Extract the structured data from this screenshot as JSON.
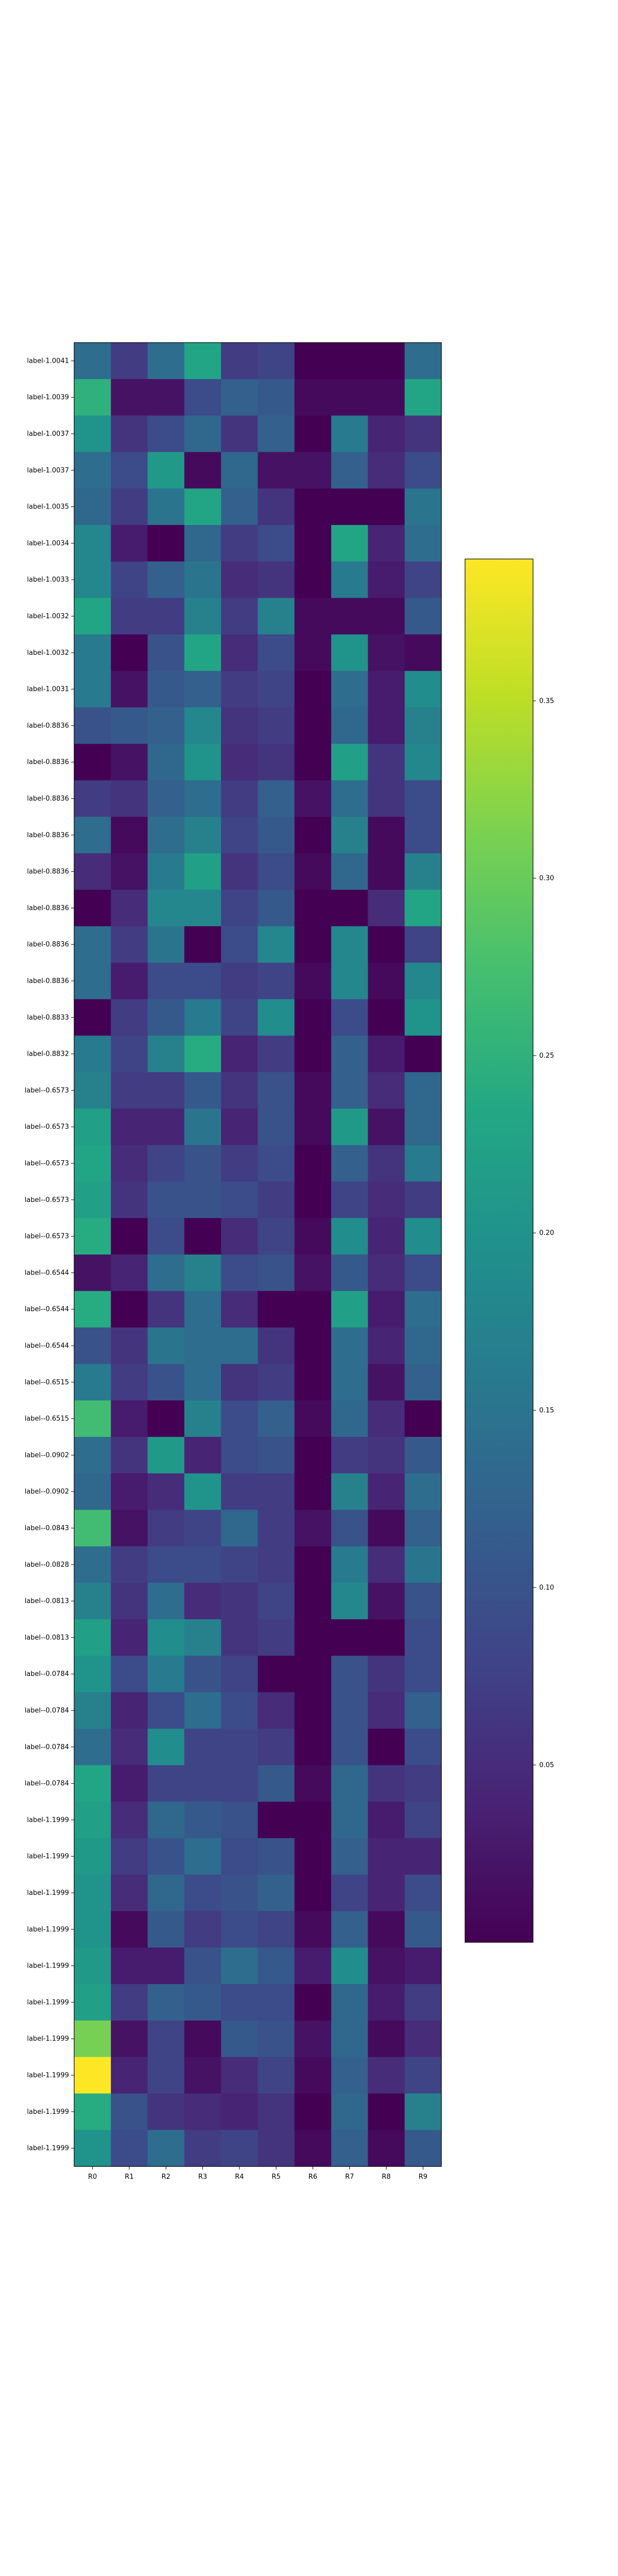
{
  "chart_data": {
    "type": "heatmap",
    "title": "",
    "xlabel": "",
    "ylabel": "",
    "colormap": "viridis",
    "colorbar": {
      "vmin": 0.0,
      "vmax": 0.39,
      "ticks": [
        0.05,
        0.1,
        0.15,
        0.2,
        0.25,
        0.3,
        0.35
      ],
      "tick_labels": [
        "0.05",
        "0.10",
        "0.15",
        "0.20",
        "0.25",
        "0.30",
        "0.35"
      ]
    },
    "columns": [
      "R0",
      "R1",
      "R2",
      "R3",
      "R4",
      "R5",
      "R6",
      "R7",
      "R8",
      "R9"
    ],
    "rows": [
      "label-1.0041",
      "label-1.0039",
      "label-1.0037",
      "label-1.0037",
      "label-1.0035",
      "label-1.0034",
      "label-1.0033",
      "label-1.0032",
      "label-1.0032",
      "label-1.0031",
      "label-0.8836",
      "label-0.8836",
      "label-0.8836",
      "label-0.8836",
      "label-0.8836",
      "label-0.8836",
      "label-0.8836",
      "label-0.8836",
      "label-0.8833",
      "label-0.8832",
      "label--0.6573",
      "label--0.6573",
      "label--0.6573",
      "label--0.6573",
      "label--0.6573",
      "label--0.6544",
      "label--0.6544",
      "label--0.6544",
      "label--0.6515",
      "label--0.6515",
      "label--0.0902",
      "label--0.0902",
      "label--0.0843",
      "label--0.0828",
      "label--0.0813",
      "label--0.0813",
      "label--0.0784",
      "label--0.0784",
      "label--0.0784",
      "label--0.0784",
      "label-1.1999",
      "label-1.1999",
      "label-1.1999",
      "label-1.1999",
      "label-1.1999",
      "label-1.1999",
      "label-1.1999",
      "label-1.1999",
      "label-1.1999",
      "label-1.1999"
    ],
    "values": [
      [
        0.14,
        0.07,
        0.14,
        0.23,
        0.07,
        0.08,
        0.0,
        0.0,
        0.0,
        0.14
      ],
      [
        0.25,
        0.02,
        0.02,
        0.09,
        0.12,
        0.11,
        0.01,
        0.01,
        0.01,
        0.23
      ],
      [
        0.2,
        0.06,
        0.09,
        0.13,
        0.06,
        0.12,
        0.0,
        0.16,
        0.04,
        0.06
      ],
      [
        0.14,
        0.09,
        0.21,
        0.01,
        0.13,
        0.02,
        0.02,
        0.12,
        0.05,
        0.09
      ],
      [
        0.13,
        0.07,
        0.15,
        0.23,
        0.12,
        0.06,
        0.0,
        0.0,
        0.0,
        0.15
      ],
      [
        0.18,
        0.03,
        0.0,
        0.13,
        0.07,
        0.09,
        0.0,
        0.23,
        0.04,
        0.14
      ],
      [
        0.18,
        0.08,
        0.12,
        0.15,
        0.05,
        0.06,
        0.0,
        0.16,
        0.03,
        0.08
      ],
      [
        0.23,
        0.07,
        0.07,
        0.17,
        0.07,
        0.17,
        0.01,
        0.01,
        0.01,
        0.11
      ],
      [
        0.16,
        0.0,
        0.1,
        0.23,
        0.05,
        0.09,
        0.01,
        0.2,
        0.02,
        0.01
      ],
      [
        0.16,
        0.02,
        0.11,
        0.12,
        0.07,
        0.08,
        0.0,
        0.14,
        0.03,
        0.19
      ],
      [
        0.1,
        0.11,
        0.12,
        0.18,
        0.06,
        0.07,
        0.0,
        0.13,
        0.03,
        0.17
      ],
      [
        0.0,
        0.02,
        0.13,
        0.2,
        0.05,
        0.06,
        0.0,
        0.22,
        0.06,
        0.18
      ],
      [
        0.07,
        0.06,
        0.12,
        0.14,
        0.07,
        0.12,
        0.02,
        0.14,
        0.06,
        0.09
      ],
      [
        0.14,
        0.01,
        0.14,
        0.17,
        0.08,
        0.11,
        0.0,
        0.17,
        0.01,
        0.09
      ],
      [
        0.05,
        0.02,
        0.16,
        0.22,
        0.06,
        0.09,
        0.01,
        0.13,
        0.01,
        0.17
      ],
      [
        0.0,
        0.05,
        0.18,
        0.18,
        0.08,
        0.11,
        0.0,
        0.0,
        0.05,
        0.23
      ],
      [
        0.14,
        0.07,
        0.15,
        0.0,
        0.09,
        0.18,
        0.0,
        0.18,
        0.0,
        0.08
      ],
      [
        0.14,
        0.03,
        0.09,
        0.09,
        0.07,
        0.08,
        0.01,
        0.18,
        0.01,
        0.18
      ],
      [
        0.0,
        0.07,
        0.11,
        0.16,
        0.08,
        0.19,
        0.0,
        0.09,
        0.0,
        0.2
      ],
      [
        0.16,
        0.08,
        0.17,
        0.24,
        0.04,
        0.07,
        0.0,
        0.12,
        0.03,
        0.0
      ],
      [
        0.17,
        0.07,
        0.07,
        0.11,
        0.06,
        0.1,
        0.01,
        0.12,
        0.05,
        0.13
      ],
      [
        0.22,
        0.04,
        0.04,
        0.15,
        0.04,
        0.1,
        0.01,
        0.21,
        0.02,
        0.13
      ],
      [
        0.23,
        0.05,
        0.08,
        0.1,
        0.07,
        0.09,
        0.0,
        0.12,
        0.06,
        0.16
      ],
      [
        0.22,
        0.06,
        0.1,
        0.1,
        0.09,
        0.07,
        0.0,
        0.08,
        0.05,
        0.07
      ],
      [
        0.24,
        0.0,
        0.09,
        0.0,
        0.05,
        0.08,
        0.01,
        0.19,
        0.04,
        0.19
      ],
      [
        0.02,
        0.04,
        0.14,
        0.17,
        0.09,
        0.1,
        0.02,
        0.11,
        0.05,
        0.09
      ],
      [
        0.24,
        0.0,
        0.06,
        0.14,
        0.05,
        0.0,
        0.0,
        0.22,
        0.03,
        0.14
      ],
      [
        0.1,
        0.06,
        0.15,
        0.14,
        0.14,
        0.06,
        0.0,
        0.14,
        0.04,
        0.13
      ],
      [
        0.16,
        0.07,
        0.1,
        0.14,
        0.06,
        0.07,
        0.0,
        0.14,
        0.02,
        0.12
      ],
      [
        0.27,
        0.03,
        0.0,
        0.17,
        0.09,
        0.12,
        0.01,
        0.13,
        0.05,
        0.0
      ],
      [
        0.14,
        0.06,
        0.21,
        0.04,
        0.09,
        0.1,
        0.0,
        0.07,
        0.06,
        0.11
      ],
      [
        0.13,
        0.03,
        0.05,
        0.2,
        0.07,
        0.07,
        0.0,
        0.17,
        0.04,
        0.14
      ],
      [
        0.27,
        0.02,
        0.07,
        0.08,
        0.13,
        0.07,
        0.02,
        0.1,
        0.01,
        0.12
      ],
      [
        0.14,
        0.07,
        0.09,
        0.09,
        0.08,
        0.07,
        0.0,
        0.16,
        0.05,
        0.15
      ],
      [
        0.17,
        0.06,
        0.14,
        0.05,
        0.06,
        0.08,
        0.0,
        0.18,
        0.02,
        0.1
      ],
      [
        0.22,
        0.04,
        0.19,
        0.17,
        0.06,
        0.07,
        0.0,
        0.0,
        0.0,
        0.09
      ],
      [
        0.2,
        0.09,
        0.16,
        0.1,
        0.08,
        0.0,
        0.0,
        0.1,
        0.06,
        0.09
      ],
      [
        0.17,
        0.04,
        0.09,
        0.14,
        0.09,
        0.05,
        0.0,
        0.1,
        0.05,
        0.12
      ],
      [
        0.14,
        0.05,
        0.19,
        0.08,
        0.08,
        0.07,
        0.0,
        0.1,
        0.0,
        0.09
      ],
      [
        0.23,
        0.03,
        0.08,
        0.08,
        0.08,
        0.11,
        0.01,
        0.13,
        0.06,
        0.07
      ],
      [
        0.22,
        0.05,
        0.13,
        0.11,
        0.1,
        0.0,
        0.0,
        0.13,
        0.03,
        0.08
      ],
      [
        0.21,
        0.07,
        0.1,
        0.14,
        0.09,
        0.1,
        0.0,
        0.12,
        0.04,
        0.04
      ],
      [
        0.2,
        0.05,
        0.13,
        0.09,
        0.1,
        0.12,
        0.0,
        0.08,
        0.04,
        0.09
      ],
      [
        0.2,
        0.01,
        0.11,
        0.07,
        0.09,
        0.08,
        0.01,
        0.12,
        0.01,
        0.11
      ],
      [
        0.21,
        0.03,
        0.03,
        0.1,
        0.14,
        0.11,
        0.03,
        0.19,
        0.02,
        0.03
      ],
      [
        0.22,
        0.07,
        0.12,
        0.11,
        0.09,
        0.09,
        0.0,
        0.13,
        0.03,
        0.07
      ],
      [
        0.31,
        0.02,
        0.08,
        0.01,
        0.11,
        0.1,
        0.02,
        0.13,
        0.01,
        0.05
      ],
      [
        0.39,
        0.04,
        0.08,
        0.02,
        0.05,
        0.08,
        0.01,
        0.12,
        0.05,
        0.08
      ],
      [
        0.24,
        0.1,
        0.06,
        0.05,
        0.04,
        0.06,
        0.0,
        0.13,
        0.0,
        0.17
      ],
      [
        0.2,
        0.09,
        0.14,
        0.07,
        0.08,
        0.06,
        0.01,
        0.12,
        0.01,
        0.11
      ]
    ]
  }
}
